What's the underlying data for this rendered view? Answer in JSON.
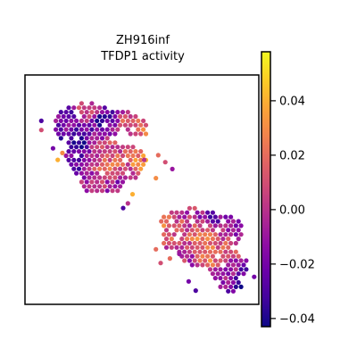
{
  "chart_data": {
    "type": "scatter",
    "title_line1": "ZH916inf",
    "title_line2": "TFDP1 activity",
    "xlabel": "",
    "ylabel": "",
    "colormap": "plasma",
    "color_range": [
      -0.043,
      0.058
    ],
    "colorbar_ticks": [
      {
        "value": 0.04,
        "label": "0.04"
      },
      {
        "value": 0.02,
        "label": "0.02"
      },
      {
        "value": 0.0,
        "label": "0.00"
      },
      {
        "value": -0.02,
        "label": "−0.02"
      },
      {
        "value": -0.04,
        "label": "−0.04"
      }
    ],
    "grid": false,
    "legend": "colorbar-right",
    "upper_cluster_anchors": [
      {
        "x": 0.2,
        "y": 0.82,
        "v": -0.02
      },
      {
        "x": 0.26,
        "y": 0.84,
        "v": 0.01
      },
      {
        "x": 0.33,
        "y": 0.8,
        "v": -0.03
      },
      {
        "x": 0.45,
        "y": 0.78,
        "v": 0.01
      },
      {
        "x": 0.5,
        "y": 0.76,
        "v": 0.025
      },
      {
        "x": 0.24,
        "y": 0.7,
        "v": -0.035
      },
      {
        "x": 0.3,
        "y": 0.68,
        "v": 0.0
      },
      {
        "x": 0.4,
        "y": 0.68,
        "v": 0.01
      },
      {
        "x": 0.35,
        "y": 0.6,
        "v": 0.02
      },
      {
        "x": 0.45,
        "y": 0.56,
        "v": 0.01
      },
      {
        "x": 0.52,
        "y": 0.58,
        "v": 0.05
      },
      {
        "x": 0.3,
        "y": 0.52,
        "v": 0.0
      },
      {
        "x": 0.4,
        "y": 0.52,
        "v": -0.01
      },
      {
        "x": 0.22,
        "y": 0.6,
        "v": -0.025
      }
    ],
    "lower_cluster_anchors": [
      {
        "x": 0.6,
        "y": 0.38,
        "v": 0.02
      },
      {
        "x": 0.7,
        "y": 0.4,
        "v": 0.0
      },
      {
        "x": 0.8,
        "y": 0.38,
        "v": -0.02
      },
      {
        "x": 0.9,
        "y": 0.34,
        "v": -0.01
      },
      {
        "x": 0.65,
        "y": 0.32,
        "v": 0.01
      },
      {
        "x": 0.76,
        "y": 0.3,
        "v": 0.02
      },
      {
        "x": 0.86,
        "y": 0.26,
        "v": 0.01
      },
      {
        "x": 0.78,
        "y": 0.2,
        "v": 0.02
      },
      {
        "x": 0.86,
        "y": 0.12,
        "v": -0.01
      },
      {
        "x": 0.92,
        "y": 0.08,
        "v": -0.035
      },
      {
        "x": 0.7,
        "y": 0.18,
        "v": 0.0
      }
    ]
  }
}
